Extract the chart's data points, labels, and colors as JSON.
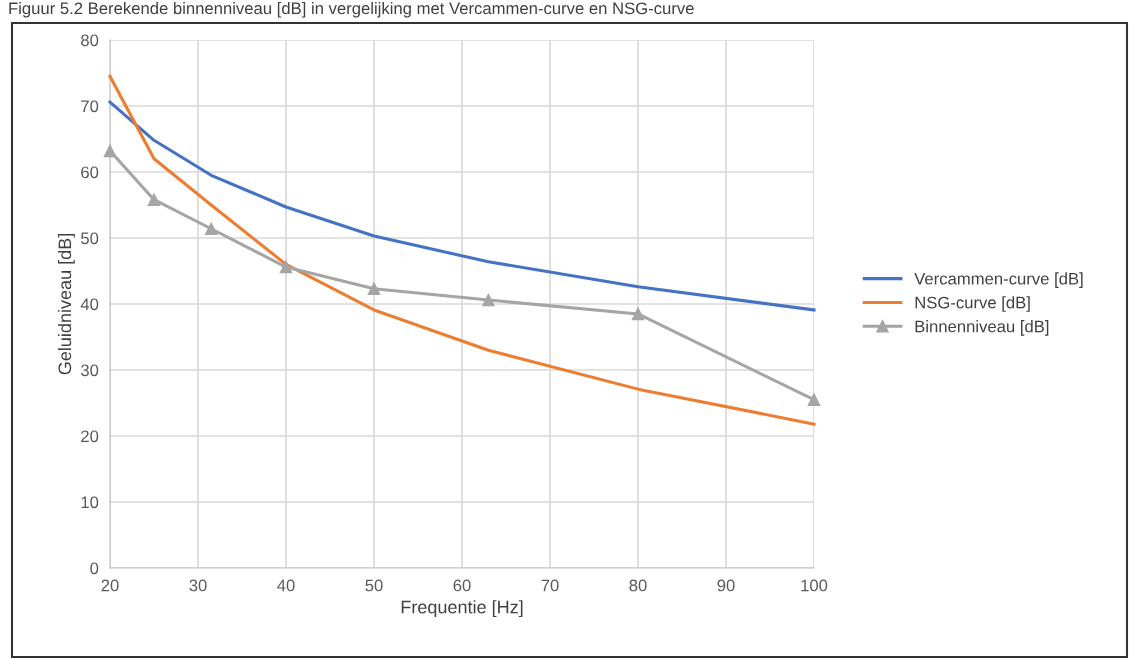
{
  "chart_data": {
    "type": "line",
    "title": "Figuur 5.2 Berekende binnenniveau [dB] in vergelijking met Vercammen-curve en NSG-curve",
    "xlabel": "Frequentie [Hz]",
    "ylabel": "Geluidniveau [dB]",
    "x": [
      20,
      25,
      31.5,
      40,
      50,
      63,
      80,
      100
    ],
    "series": [
      {
        "name": "Vercammen-curve [dB]",
        "color": "#4472c4",
        "marker": "none",
        "values": [
          70.6,
          64.8,
          59.5,
          54.7,
          50.3,
          46.4,
          42.6,
          39.1
        ]
      },
      {
        "name": "NSG-curve [dB]",
        "color": "#ed7d31",
        "marker": "none",
        "values": [
          74.5,
          62,
          55,
          46,
          39.1,
          33,
          27.1,
          21.8
        ]
      },
      {
        "name": "Binnenniveau [dB]",
        "color": "#a5a5a5",
        "marker": "triangle",
        "values": [
          63.2,
          55.8,
          51.4,
          45.6,
          42.3,
          40.6,
          38.5,
          25.5
        ]
      }
    ],
    "xlim": [
      20,
      100
    ],
    "xticks": [
      20,
      30,
      40,
      50,
      60,
      70,
      80,
      90,
      100
    ],
    "ylim": [
      0,
      80
    ],
    "yticks": [
      0,
      10,
      20,
      30,
      40,
      50,
      60,
      70,
      80
    ],
    "grid": true,
    "legend": "right"
  }
}
